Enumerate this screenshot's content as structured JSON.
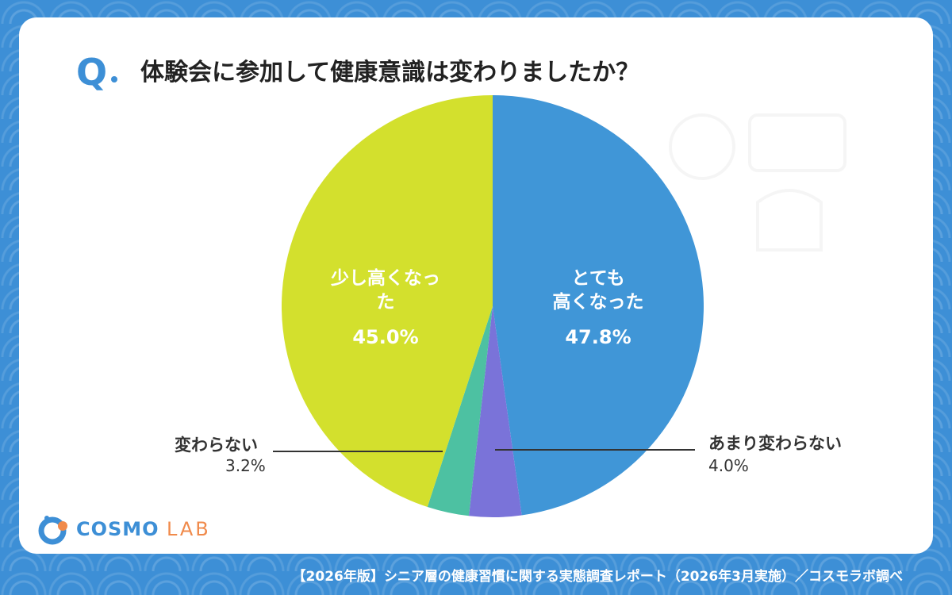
{
  "question": {
    "mark": "Q",
    "text": "体験会に参加して健康意識は変わりましたか？"
  },
  "chart_data": {
    "type": "pie",
    "start": "12 o'clock",
    "direction": "clockwise",
    "slices": [
      {
        "label": "とても高くなった",
        "label_lines": [
          "とても",
          "高くなった"
        ],
        "value": 47.8,
        "display": "47.8%",
        "color": "#4096d7",
        "label_position": "inside"
      },
      {
        "label": "あまり変わらない",
        "value": 4.0,
        "display": "4.0%",
        "color": "#7a73d9",
        "label_position": "outside-right"
      },
      {
        "label": "変わらない",
        "value": 3.2,
        "display": "3.2%",
        "color": "#4dc1a2",
        "label_position": "outside-left"
      },
      {
        "label": "少し高くなった",
        "label_lines": [
          "少し高くなっ",
          "た"
        ],
        "value": 45.0,
        "display": "45.0%",
        "color": "#d3e02d",
        "label_position": "inside"
      }
    ]
  },
  "logo": {
    "main": "COSMO",
    "sub": "LAB"
  },
  "footer": "【2026年版】シニア層の健康習慣に関する実態調査レポート（2026年3月実施）／コスモラボ調べ",
  "colors": {
    "background": "#3d8fd6",
    "accent": "#3d8fd6",
    "logo_sub": "#f08a4b"
  }
}
